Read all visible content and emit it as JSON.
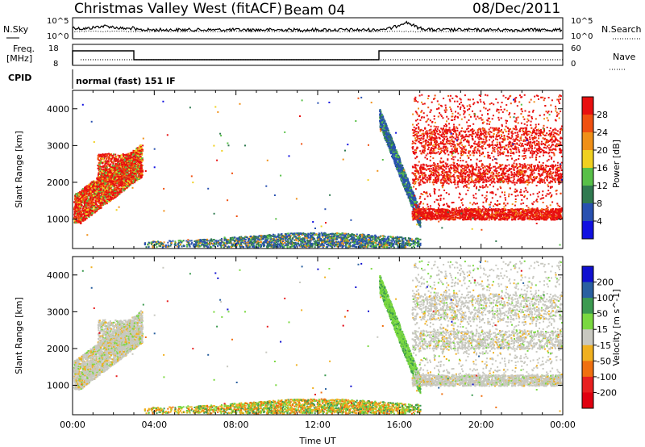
{
  "header": {
    "title": "Christmas Valley West (fitACF)",
    "beam": "Beam 04",
    "date": "08/Dec/2011"
  },
  "panels": {
    "nsky": {
      "label": "N.Sky",
      "right_label": "N.Search",
      "left_ticks": [
        "10^5",
        "10^0"
      ],
      "right_ticks": [
        "10^5",
        "10^0"
      ]
    },
    "freq": {
      "label_top": "Freq.",
      "label_unit": "[MHz]",
      "right_label": "Nave",
      "left_ticks": [
        "18",
        "8"
      ],
      "right_ticks": [
        "60",
        "0"
      ]
    },
    "cpid": {
      "label": "CPID",
      "text": "normal (fast) 151 IF"
    }
  },
  "colors": {
    "power_scale": [
      "#1010e0",
      "#2850b0",
      "#307a50",
      "#58c048",
      "#f0d020",
      "#f09018",
      "#f05010",
      "#e81010"
    ],
    "velocity_scale": [
      "#1010d0",
      "#2a60a0",
      "#3c9a50",
      "#7ad840",
      "#c8c8c0",
      "#f0b020",
      "#f07010",
      "#e82020",
      "#e00010"
    ]
  },
  "chart_data": [
    {
      "type": "heatmap",
      "name": "power",
      "xlabel": "",
      "ylabel": "Slant Range [km]",
      "yticks": [
        "1000",
        "2000",
        "3000",
        "4000"
      ],
      "ylim": [
        200,
        4500
      ],
      "xlim": [
        "00:00",
        "24:00"
      ],
      "colorbar_label": "Power [dB]",
      "colorbar_ticks": [
        "28",
        "24",
        "20",
        "16",
        "12",
        "8",
        "4"
      ],
      "colorbar_range": [
        0,
        30
      ]
    },
    {
      "type": "heatmap",
      "name": "velocity",
      "xlabel": "Time UT",
      "ylabel": "Slant Range [km]",
      "xticks": [
        "00:00",
        "04:00",
        "08:00",
        "12:00",
        "16:00",
        "20:00",
        "00:00"
      ],
      "yticks": [
        "1000",
        "2000",
        "3000",
        "4000"
      ],
      "ylim": [
        200,
        4500
      ],
      "colorbar_label": "Velocity [m s^-1]",
      "colorbar_ticks": [
        "200",
        "100",
        "50",
        "15",
        "-15",
        "-50",
        "-100",
        "-200"
      ]
    }
  ]
}
